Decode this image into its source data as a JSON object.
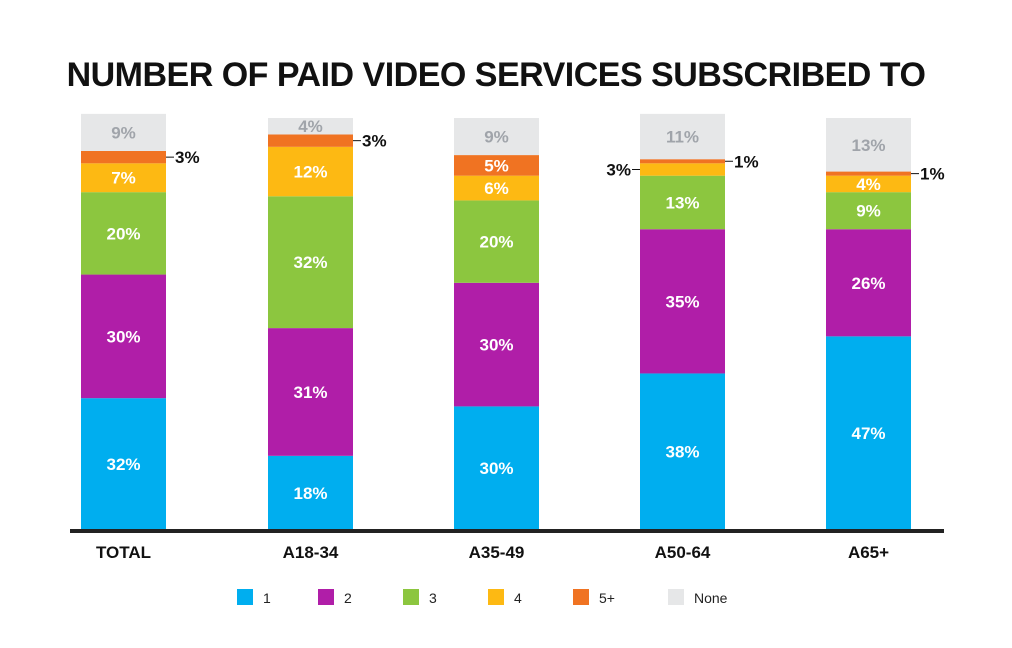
{
  "chart_data": {
    "type": "stacked-bar",
    "title": "NUMBER OF PAID VIDEO SERVICES SUBSCRIBED TO",
    "categories": [
      "TOTAL",
      "A18-34",
      "A35-49",
      "A50-64",
      "A65+"
    ],
    "ylim": [
      0,
      100
    ],
    "series": [
      {
        "name": "1",
        "color": "#00aeef",
        "values": [
          32,
          18,
          30,
          38,
          47
        ]
      },
      {
        "name": "2",
        "color": "#b01ea8",
        "values": [
          30,
          31,
          30,
          35,
          26
        ]
      },
      {
        "name": "3",
        "color": "#8cc63f",
        "values": [
          20,
          32,
          20,
          13,
          9
        ]
      },
      {
        "name": "4",
        "color": "#fdb913",
        "values": [
          7,
          12,
          6,
          3,
          4
        ]
      },
      {
        "name": "5+",
        "color": "#f07322",
        "values": [
          3,
          3,
          5,
          1,
          1
        ]
      },
      {
        "name": "None",
        "color": "#e6e7e8",
        "values": [
          9,
          4,
          9,
          11,
          13
        ]
      }
    ],
    "data_labels": [
      [
        "32%",
        "30%",
        "20%",
        "7%",
        "3%",
        "9%"
      ],
      [
        "18%",
        "31%",
        "32%",
        "12%",
        "3%",
        "4%"
      ],
      [
        "30%",
        "30%",
        "20%",
        "6%",
        "5%",
        "9%"
      ],
      [
        "38%",
        "35%",
        "13%",
        "3%",
        "1%",
        "11%"
      ],
      [
        "47%",
        "26%",
        "9%",
        "4%",
        "1%",
        "13%"
      ]
    ],
    "legend_position": "bottom",
    "grid": false
  }
}
